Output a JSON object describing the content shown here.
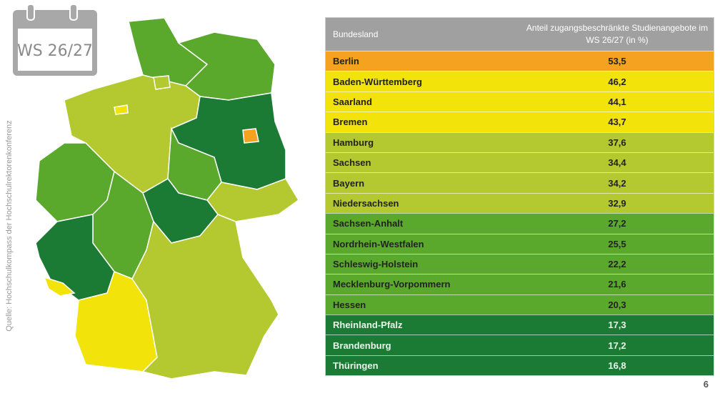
{
  "badge": "WS 26/27",
  "source": "Quelle: Hochschulkompass der Hochschulrektorenkonferenz",
  "table": {
    "header": [
      "Bundesland",
      "Anteil zugangsbeschränkte Studienangebote im WS 26/27 (in %)"
    ],
    "rows": [
      [
        "Berlin",
        "53,5"
      ],
      [
        "Baden-Württemberg",
        "46,2"
      ],
      [
        "Saarland",
        "44,1"
      ],
      [
        "Bremen",
        "43,7"
      ],
      [
        "Hamburg",
        "37,6"
      ],
      [
        "Sachsen",
        "34,4"
      ],
      [
        "Bayern",
        "34,2"
      ],
      [
        "Niedersachsen",
        "32,9"
      ],
      [
        "Sachsen-Anhalt",
        "27,2"
      ],
      [
        "Nordrhein-Westfalen",
        "25,5"
      ],
      [
        "Schleswig-Holstein",
        "22,2"
      ],
      [
        "Mecklenburg-Vorpommern",
        "21,6"
      ],
      [
        "Hessen",
        "20,3"
      ],
      [
        "Rheinland-Pfalz",
        "17,3"
      ],
      [
        "Brandenburg",
        "17,2"
      ],
      [
        "Thüringen",
        "16,8"
      ]
    ],
    "row_colors": [
      "#f4a21f",
      "#f2e30a",
      "#f2e30a",
      "#f2e30a",
      "#b3c92f",
      "#b3c92f",
      "#b3c92f",
      "#b3c92f",
      "#5aa92d",
      "#5aa92d",
      "#5aa92d",
      "#5aa92d",
      "#5aa92d",
      "#1b7b35",
      "#1b7b35",
      "#1b7b35"
    ]
  },
  "page_number": "6"
}
